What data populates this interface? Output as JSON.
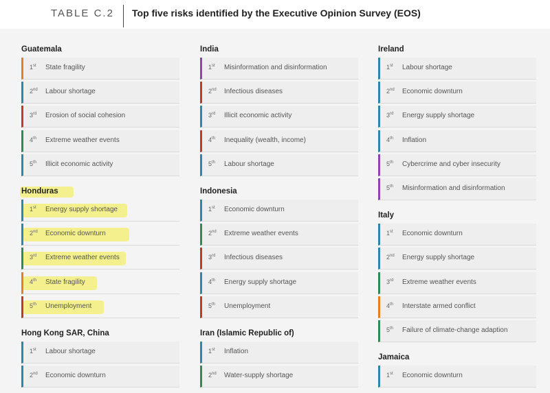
{
  "header": {
    "table_label": "TABLE C.2",
    "title": "Top five risks identified by the Executive Opinion Survey (EOS)"
  },
  "colors": {
    "societal": "#c0392b",
    "economic": "#2e86ab",
    "technological": "#8e44ad",
    "environmental": "#2e8b57",
    "geopolitical": "#e67e22",
    "highlight": "#f3ef7a"
  },
  "columns": [
    {
      "countries": [
        {
          "name": "Guatemala",
          "risks": [
            {
              "rank": "1",
              "suffix": "st",
              "label": "State fragility",
              "category": "geopolitical"
            },
            {
              "rank": "2",
              "suffix": "nd",
              "label": "Labour shortage",
              "category": "economic"
            },
            {
              "rank": "3",
              "suffix": "rd",
              "label": "Erosion of social cohesion",
              "category": "societal"
            },
            {
              "rank": "4",
              "suffix": "th",
              "label": "Extreme weather events",
              "category": "environmental"
            },
            {
              "rank": "5",
              "suffix": "th",
              "label": "Illicit economic activity",
              "category": "economic"
            }
          ]
        },
        {
          "name": "Honduras",
          "highlighted": true,
          "risks": [
            {
              "rank": "1",
              "suffix": "st",
              "label": "Energy supply shortage",
              "category": "economic"
            },
            {
              "rank": "2",
              "suffix": "nd",
              "label": "Economic downturn",
              "category": "economic"
            },
            {
              "rank": "3",
              "suffix": "rd",
              "label": "Extreme weather events",
              "category": "environmental"
            },
            {
              "rank": "4",
              "suffix": "th",
              "label": "State fragility",
              "category": "geopolitical"
            },
            {
              "rank": "5",
              "suffix": "th",
              "label": "Unemployment",
              "category": "societal"
            }
          ]
        },
        {
          "name": "Hong Kong SAR, China",
          "risks": [
            {
              "rank": "1",
              "suffix": "st",
              "label": "Labour shortage",
              "category": "economic"
            },
            {
              "rank": "2",
              "suffix": "nd",
              "label": "Economic downturn",
              "category": "economic"
            }
          ]
        }
      ]
    },
    {
      "countries": [
        {
          "name": "India",
          "risks": [
            {
              "rank": "1",
              "suffix": "st",
              "label": "Misinformation and disinformation",
              "category": "technological"
            },
            {
              "rank": "2",
              "suffix": "nd",
              "label": "Infectious diseases",
              "category": "societal"
            },
            {
              "rank": "3",
              "suffix": "rd",
              "label": "Illicit economic activity",
              "category": "economic"
            },
            {
              "rank": "4",
              "suffix": "th",
              "label": "Inequality (wealth, income)",
              "category": "societal"
            },
            {
              "rank": "5",
              "suffix": "th",
              "label": "Labour shortage",
              "category": "economic"
            }
          ]
        },
        {
          "name": "Indonesia",
          "risks": [
            {
              "rank": "1",
              "suffix": "st",
              "label": "Economic downturn",
              "category": "economic"
            },
            {
              "rank": "2",
              "suffix": "nd",
              "label": "Extreme weather events",
              "category": "environmental"
            },
            {
              "rank": "3",
              "suffix": "rd",
              "label": "Infectious diseases",
              "category": "societal"
            },
            {
              "rank": "4",
              "suffix": "th",
              "label": "Energy supply shortage",
              "category": "economic"
            },
            {
              "rank": "5",
              "suffix": "th",
              "label": "Unemployment",
              "category": "societal"
            }
          ]
        },
        {
          "name": "Iran (Islamic Republic of)",
          "risks": [
            {
              "rank": "1",
              "suffix": "st",
              "label": "Inflation",
              "category": "economic"
            },
            {
              "rank": "2",
              "suffix": "nd",
              "label": "Water-supply shortage",
              "category": "environmental"
            }
          ]
        }
      ]
    },
    {
      "countries": [
        {
          "name": "Ireland",
          "risks": [
            {
              "rank": "1",
              "suffix": "st",
              "label": "Labour shortage",
              "category": "economic"
            },
            {
              "rank": "2",
              "suffix": "nd",
              "label": "Economic downturn",
              "category": "economic"
            },
            {
              "rank": "3",
              "suffix": "rd",
              "label": "Energy supply shortage",
              "category": "economic"
            },
            {
              "rank": "4",
              "suffix": "th",
              "label": "Inflation",
              "category": "economic"
            },
            {
              "rank": "5",
              "suffix": "th",
              "label": "Cybercrime and cyber insecurity",
              "category": "technological"
            },
            {
              "rank": "5",
              "suffix": "th",
              "label": "Misinformation and disinformation",
              "category": "technological"
            }
          ]
        },
        {
          "name": "Italy",
          "risks": [
            {
              "rank": "1",
              "suffix": "st",
              "label": "Economic downturn",
              "category": "economic"
            },
            {
              "rank": "2",
              "suffix": "nd",
              "label": "Energy supply shortage",
              "category": "economic"
            },
            {
              "rank": "3",
              "suffix": "rd",
              "label": "Extreme weather events",
              "category": "environmental"
            },
            {
              "rank": "4",
              "suffix": "th",
              "label": "Interstate armed conflict",
              "category": "geopolitical"
            },
            {
              "rank": "5",
              "suffix": "th",
              "label": "Failure of climate-change adaption",
              "category": "environmental"
            }
          ]
        },
        {
          "name": "Jamaica",
          "risks": [
            {
              "rank": "1",
              "suffix": "st",
              "label": "Economic downturn",
              "category": "economic"
            }
          ]
        }
      ]
    }
  ]
}
